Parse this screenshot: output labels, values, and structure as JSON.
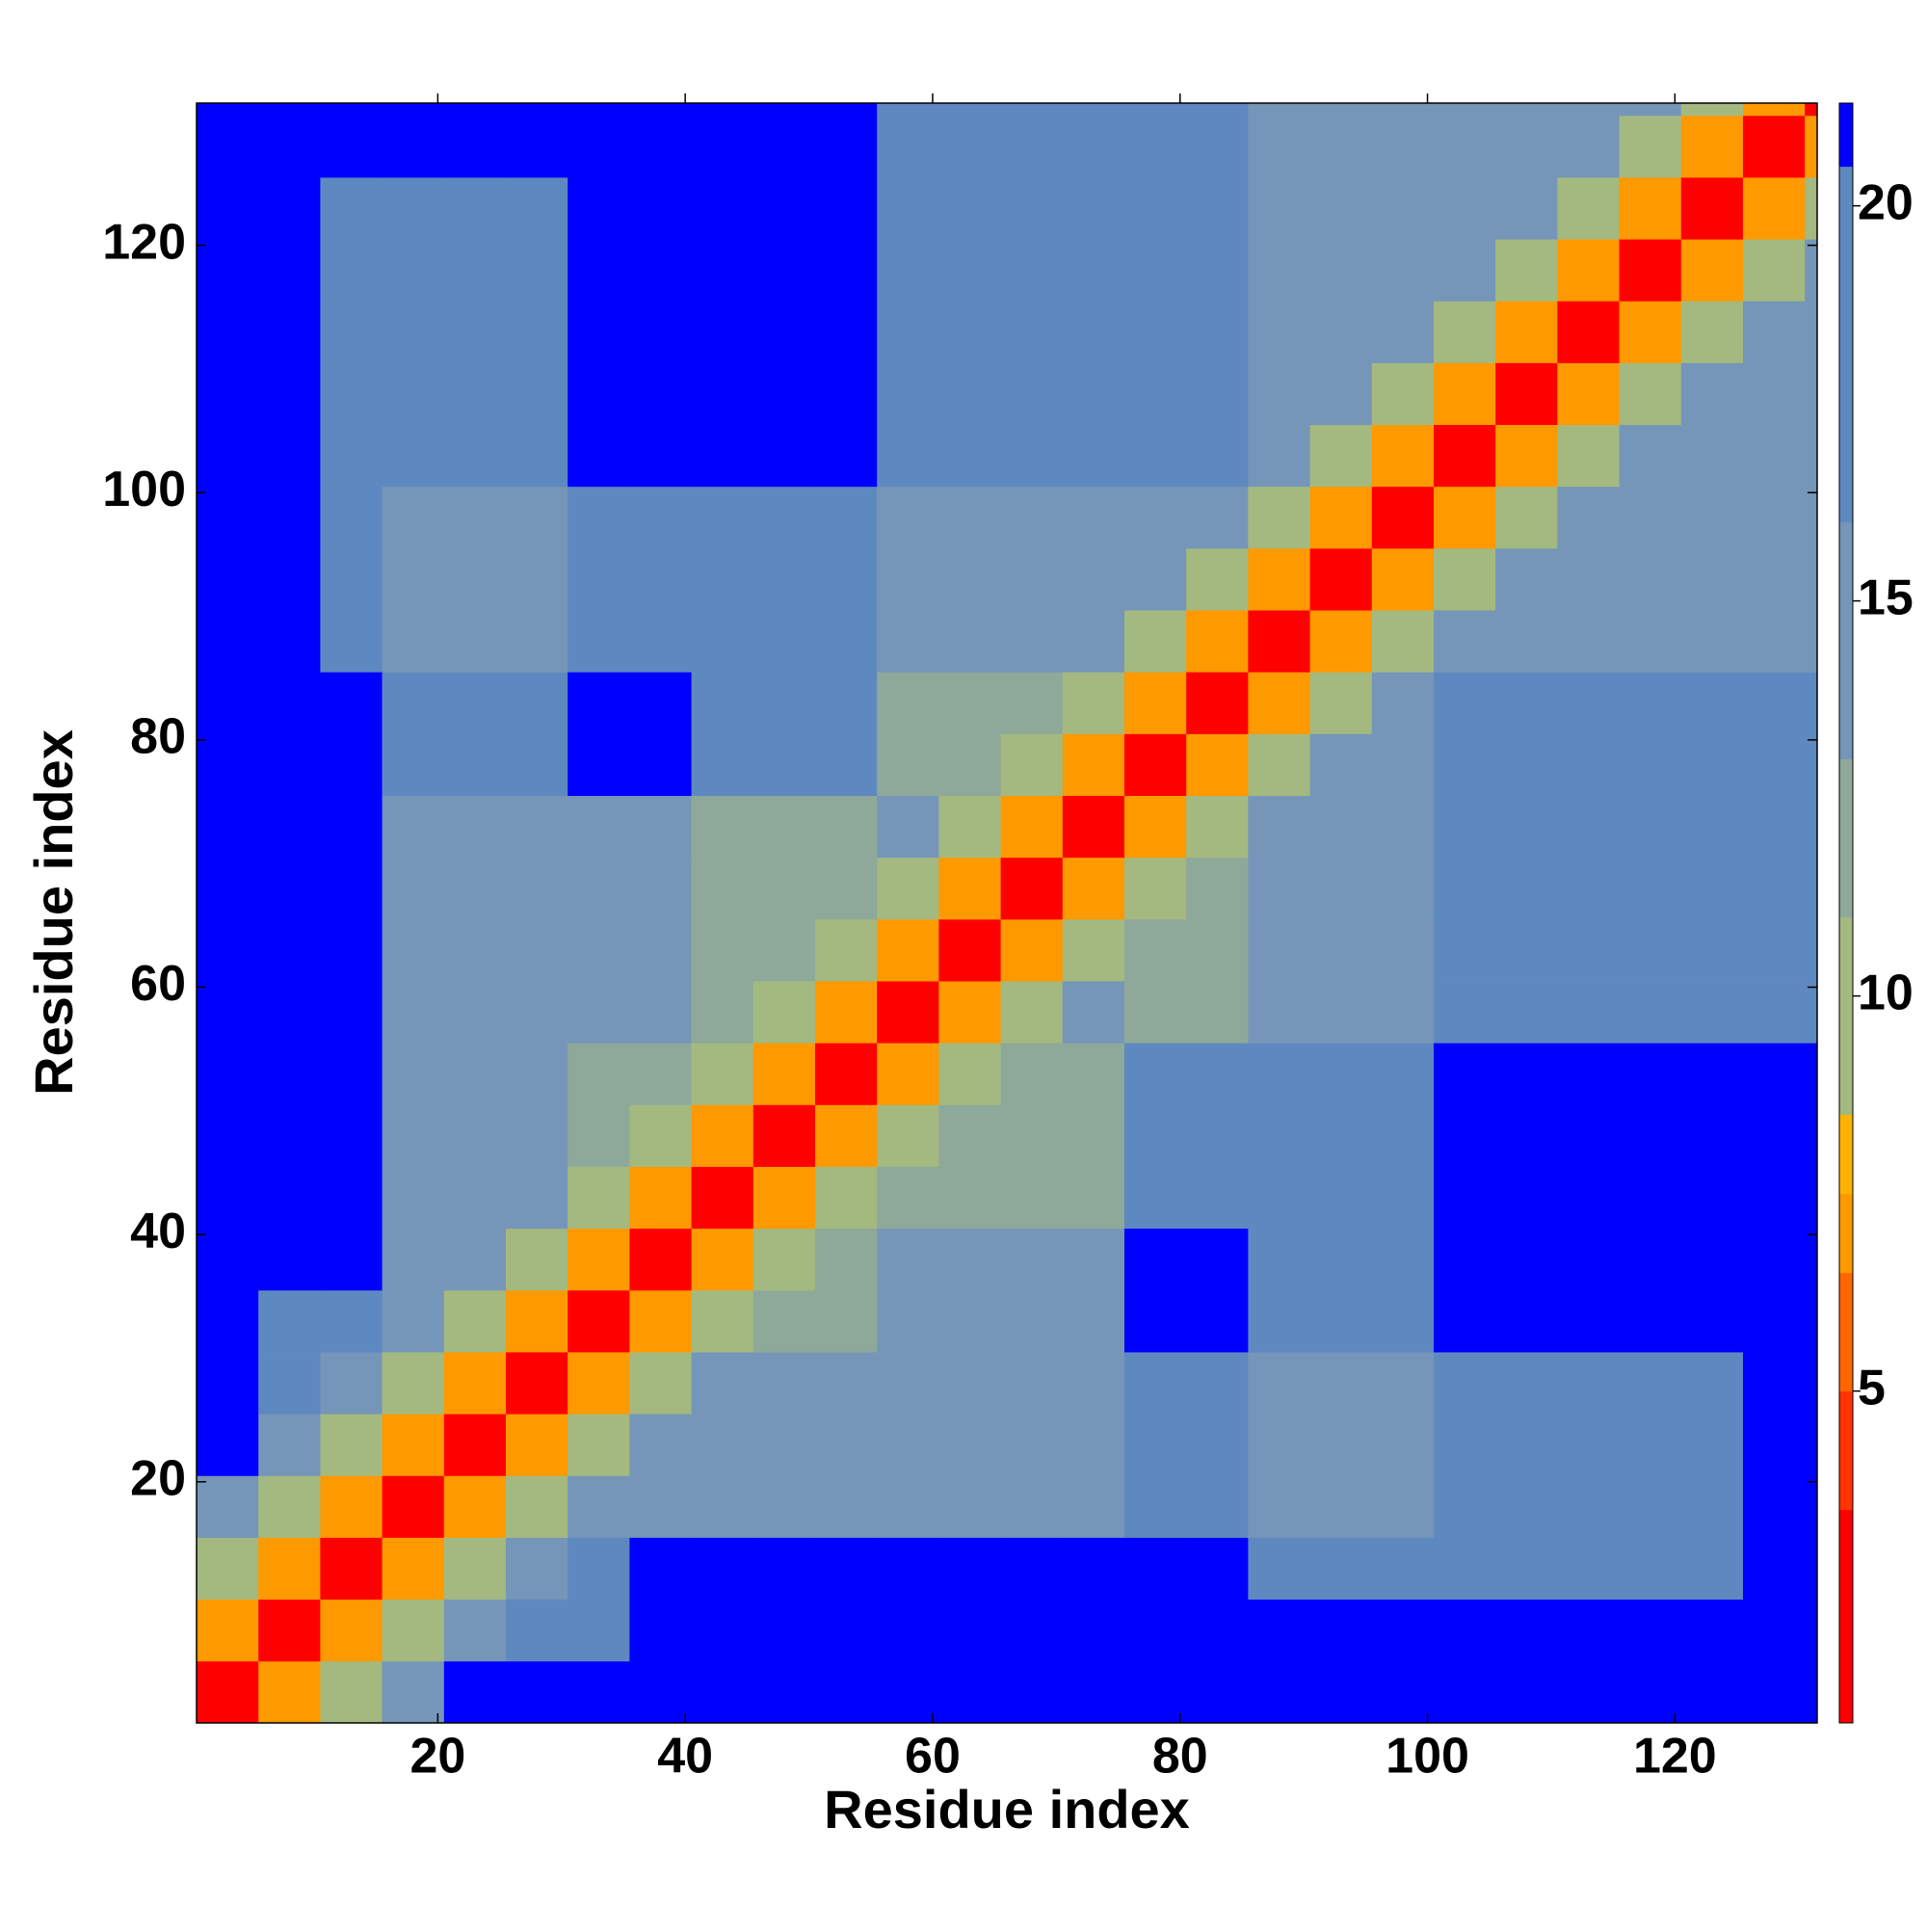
{
  "chart_data": {
    "type": "heatmap",
    "xlabel": "Residue index",
    "ylabel": "Residue index",
    "xlim": [
      0.5,
      131.5
    ],
    "ylim": [
      0.5,
      131.5
    ],
    "xticks": [
      20,
      40,
      60,
      80,
      100,
      120
    ],
    "yticks": [
      20,
      40,
      60,
      80,
      100,
      120
    ],
    "x_edges": [
      0.5,
      5.5,
      10.5,
      15.5,
      20.5,
      25.5,
      30.5,
      35.5,
      40.5,
      45.5,
      50.5,
      55.5,
      60.5,
      65.5,
      70.5,
      75.5,
      80.5,
      85.5,
      90.5,
      95.5,
      100.5,
      105.5,
      110.5,
      115.5,
      120.5,
      125.5,
      130.5,
      131.5
    ],
    "y_edges": [
      0.5,
      5.5,
      10.5,
      15.5,
      20.5,
      25.5,
      30.5,
      35.5,
      40.5,
      45.5,
      50.5,
      55.5,
      60.5,
      65.5,
      70.5,
      75.5,
      80.5,
      85.5,
      90.5,
      95.5,
      100.5,
      105.5,
      110.5,
      115.5,
      120.5,
      125.5,
      130.5,
      131.5
    ],
    "z": [
      [
        2,
        7,
        10.5,
        14,
        21.3,
        21.3,
        21.3,
        21.3,
        21.3,
        21.3,
        21.3,
        21.3,
        21.3,
        21.3,
        21.3,
        21.3,
        21.3,
        21.3,
        21.3,
        21.3,
        21.3,
        21.3,
        21.3,
        21.3,
        21.3,
        21.3,
        21.3
      ],
      [
        7,
        2,
        7,
        10.5,
        14,
        19,
        18,
        21.3,
        21.3,
        21.3,
        21.3,
        21.3,
        21.3,
        21.3,
        21.3,
        21.3,
        21.3,
        21.3,
        21.3,
        21.3,
        21.3,
        21.3,
        21.3,
        21.3,
        21.3,
        21.3,
        21.3
      ],
      [
        10.5,
        7,
        2,
        7,
        10.5,
        14,
        18,
        21.3,
        21.3,
        21.3,
        21.3,
        21.3,
        21.3,
        21.3,
        21.3,
        21.3,
        21.3,
        17,
        17,
        17,
        20,
        20,
        20,
        20,
        20,
        21.3,
        21.3
      ],
      [
        14,
        10.5,
        7,
        2,
        7,
        10.5,
        14,
        14,
        14,
        14,
        14,
        13,
        13,
        13,
        13,
        16,
        16,
        14,
        14,
        14,
        19,
        19,
        19,
        19,
        19,
        21.3,
        21.3
      ],
      [
        21.3,
        14,
        10.5,
        7,
        2,
        7,
        10.5,
        14,
        14,
        14,
        14,
        13,
        13,
        13,
        13,
        16,
        16,
        14,
        14,
        14,
        19,
        19,
        19,
        19,
        19,
        21.3,
        21.3
      ],
      [
        21.3,
        19,
        14,
        10.5,
        7,
        2,
        7,
        10.5,
        14,
        14,
        14,
        13,
        13,
        13,
        13,
        16,
        16,
        14,
        14,
        14,
        19,
        19,
        19,
        19,
        19,
        21.3,
        21.3
      ],
      [
        21.3,
        18,
        18,
        14,
        10.5,
        7,
        2,
        7,
        10.5,
        12,
        12,
        13,
        13,
        13,
        13,
        21.3,
        21.3,
        20,
        20,
        20,
        21.3,
        21.3,
        21.3,
        21.3,
        21.3,
        21.3,
        21.3
      ],
      [
        21.3,
        21.3,
        21.3,
        14,
        14,
        10.5,
        7,
        2,
        7,
        10.5,
        12,
        13,
        13,
        13,
        13,
        21.3,
        21.3,
        20,
        20,
        20,
        21.3,
        21.3,
        21.3,
        21.3,
        21.3,
        21.3,
        21.3
      ],
      [
        21.3,
        21.3,
        21.3,
        14,
        14,
        14,
        10.5,
        7,
        2,
        7,
        10.5,
        12,
        12,
        12,
        12,
        19,
        19,
        19,
        19,
        19,
        21.3,
        21.3,
        21.3,
        21.3,
        21.3,
        21.3,
        21.3
      ],
      [
        21.3,
        21.3,
        21.3,
        14,
        14,
        14,
        12,
        10.5,
        7,
        2,
        7,
        10.5,
        12,
        12,
        12,
        19,
        19,
        19,
        19,
        19,
        21.3,
        21.3,
        21.3,
        21.3,
        21.3,
        21.3,
        21.3
      ],
      [
        21.3,
        21.3,
        21.3,
        14,
        14,
        14,
        12,
        12,
        10.5,
        7,
        2,
        7,
        10.5,
        12,
        12,
        19,
        19,
        19,
        19,
        19,
        21.3,
        21.3,
        21.3,
        21.3,
        21.3,
        21.3,
        21.3
      ],
      [
        21.3,
        21.3,
        21.3,
        13,
        13,
        13,
        13,
        13,
        12,
        10.5,
        7,
        2,
        7,
        10.5,
        13,
        12,
        12,
        14,
        14,
        14,
        16,
        16,
        16,
        16,
        16,
        16,
        16
      ],
      [
        21.3,
        21.3,
        21.3,
        13,
        13,
        13,
        13,
        13,
        12,
        12,
        10.5,
        7,
        2,
        7,
        10.5,
        12,
        12,
        14,
        14,
        14,
        16,
        16,
        16,
        16,
        16,
        16,
        16
      ],
      [
        21.3,
        21.3,
        21.3,
        13,
        13,
        13,
        13,
        13,
        12,
        12,
        12,
        10.5,
        7,
        2,
        7,
        10.5,
        12,
        14,
        14,
        14,
        16,
        16,
        16,
        16,
        16,
        16,
        16
      ],
      [
        21.3,
        21.3,
        21.3,
        13,
        13,
        13,
        13,
        13,
        12,
        12,
        12,
        13,
        10.5,
        7,
        2,
        7,
        10.5,
        14,
        14,
        14,
        16,
        16,
        16,
        16,
        16,
        16,
        16
      ],
      [
        21.3,
        21.3,
        21.3,
        16,
        16,
        16,
        21.3,
        21.3,
        19,
        19,
        19,
        12,
        12,
        10.5,
        7,
        2,
        7,
        10.5,
        13,
        13,
        17,
        17,
        17,
        17,
        17,
        17,
        17
      ],
      [
        21.3,
        21.3,
        21.3,
        16,
        16,
        16,
        21.3,
        21.3,
        19,
        19,
        19,
        12,
        12,
        12,
        10.5,
        7,
        2,
        7,
        10.5,
        13,
        17,
        17,
        17,
        17,
        17,
        17,
        17
      ],
      [
        21.3,
        21.3,
        17,
        14,
        14,
        14,
        20,
        20,
        19,
        19,
        19,
        14,
        14,
        14,
        14,
        10.5,
        7,
        2,
        7,
        10.5,
        13,
        13,
        13,
        13,
        13,
        13,
        13
      ],
      [
        21.3,
        21.3,
        17,
        14,
        14,
        14,
        20,
        20,
        19,
        19,
        19,
        14,
        14,
        14,
        14,
        13,
        10.5,
        7,
        2,
        7,
        10.5,
        13,
        13,
        13,
        13,
        13,
        13
      ],
      [
        21.3,
        21.3,
        17,
        14,
        14,
        14,
        20,
        20,
        19,
        19,
        19,
        14,
        14,
        14,
        14,
        13,
        13,
        10.5,
        7,
        2,
        7,
        10.5,
        13,
        13,
        13,
        13,
        13
      ],
      [
        21.3,
        21.3,
        20,
        19,
        19,
        19,
        21.3,
        21.3,
        21.3,
        21.3,
        21.3,
        16,
        16,
        16,
        16,
        17,
        17,
        13,
        10.5,
        7,
        2,
        7,
        10.5,
        13,
        13,
        13,
        13
      ],
      [
        21.3,
        21.3,
        20,
        19,
        19,
        19,
        21.3,
        21.3,
        21.3,
        21.3,
        21.3,
        16,
        16,
        16,
        16,
        17,
        17,
        13,
        13,
        10.5,
        7,
        2,
        7,
        10.5,
        13,
        13,
        13
      ],
      [
        21.3,
        21.3,
        20,
        19,
        19,
        19,
        21.3,
        21.3,
        21.3,
        21.3,
        21.3,
        16,
        16,
        16,
        16,
        17,
        17,
        13,
        13,
        13,
        10.5,
        7,
        2,
        7,
        10.5,
        13,
        13
      ],
      [
        21.3,
        21.3,
        20,
        19,
        19,
        19,
        21.3,
        21.3,
        21.3,
        21.3,
        21.3,
        16,
        16,
        16,
        16,
        17,
        17,
        13,
        13,
        13,
        13,
        10.5,
        7,
        2,
        7,
        10.5,
        13
      ],
      [
        21.3,
        21.3,
        20,
        19,
        19,
        19,
        21.3,
        21.3,
        21.3,
        21.3,
        21.3,
        16,
        16,
        16,
        16,
        17,
        17,
        13,
        13,
        13,
        13,
        13,
        10.5,
        7,
        2,
        7,
        10.5
      ],
      [
        21.3,
        21.3,
        21.3,
        21.3,
        21.3,
        21.3,
        21.3,
        21.3,
        21.3,
        21.3,
        21.3,
        16,
        16,
        16,
        16,
        17,
        17,
        13,
        13,
        13,
        13,
        13,
        13,
        10.5,
        7,
        2,
        7
      ],
      [
        21.3,
        21.3,
        21.3,
        21.3,
        21.3,
        21.3,
        21.3,
        21.3,
        21.3,
        21.3,
        21.3,
        16,
        16,
        16,
        16,
        17,
        17,
        13,
        13,
        13,
        13,
        13,
        13,
        13,
        10.5,
        7,
        2
      ]
    ],
    "colorbar": {
      "levels": [
        0.8,
        3.5,
        5,
        6.5,
        7.5,
        8.5,
        11,
        13,
        16,
        20.5,
        21.3
      ],
      "colors": [
        "#ff0000",
        "#ff3300",
        "#ff6600",
        "#ff9900",
        "#ffb300",
        "#a3b97f",
        "#8ea99a",
        "#7596b8",
        "#5e89c0",
        "#0000ff"
      ],
      "ticks": [
        5,
        10,
        15,
        20
      ]
    }
  }
}
